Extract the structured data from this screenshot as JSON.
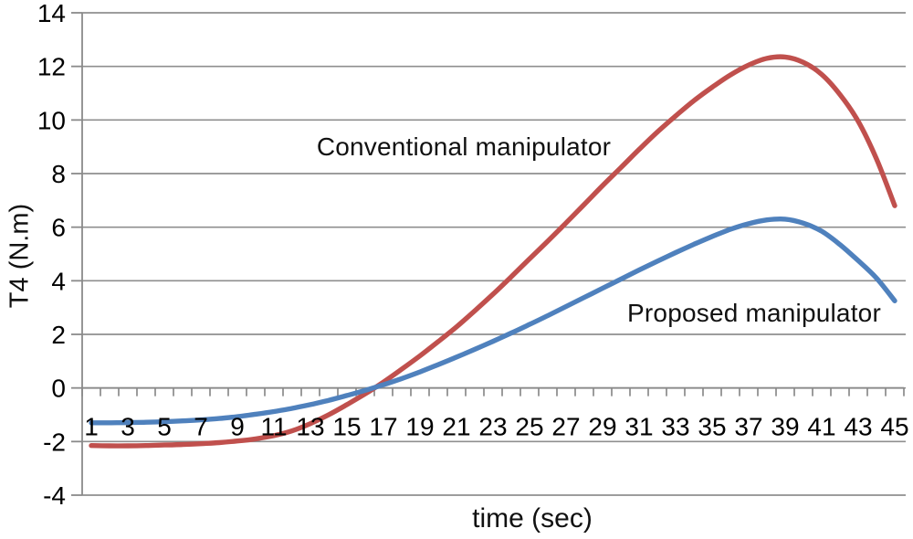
{
  "chart_data": {
    "type": "line",
    "title": "",
    "xlabel": "time (sec)",
    "ylabel": "T4 (N.m)",
    "x": [
      1,
      2,
      3,
      4,
      5,
      6,
      7,
      8,
      9,
      10,
      11,
      12,
      13,
      14,
      15,
      16,
      17,
      18,
      19,
      20,
      21,
      22,
      23,
      24,
      25,
      26,
      27,
      28,
      29,
      30,
      31,
      32,
      33,
      34,
      35,
      36,
      37,
      38,
      39,
      40,
      41,
      42,
      43,
      44,
      45
    ],
    "x_tick_labels": [
      "1",
      "3",
      "5",
      "7",
      "9",
      "11",
      "13",
      "15",
      "17",
      "19",
      "21",
      "23",
      "25",
      "27",
      "29",
      "31",
      "33",
      "35",
      "37",
      "39",
      "41",
      "43",
      "45"
    ],
    "ylim": [
      -4,
      14
    ],
    "yticks": [
      -4,
      -2,
      0,
      2,
      4,
      6,
      8,
      10,
      12,
      14
    ],
    "grid": true,
    "legend_position": "none",
    "grid_color": "#8f8f8f",
    "axis_color": "#8a8a8a",
    "text_color": "#000000",
    "series": [
      {
        "name": "Conventional manipulator",
        "color": "#C0504D",
        "values": [
          -2.15,
          -2.16,
          -2.16,
          -2.15,
          -2.13,
          -2.11,
          -2.08,
          -2.04,
          -1.98,
          -1.9,
          -1.78,
          -1.6,
          -1.33,
          -1.0,
          -0.62,
          -0.22,
          0.22,
          0.7,
          1.2,
          1.73,
          2.28,
          2.88,
          3.5,
          4.15,
          4.82,
          5.48,
          6.16,
          6.85,
          7.55,
          8.22,
          8.9,
          9.55,
          10.15,
          10.72,
          11.22,
          11.68,
          12.05,
          12.3,
          12.35,
          12.15,
          11.7,
          10.95,
          9.95,
          8.55,
          6.8
        ]
      },
      {
        "name": "Proposed manipulator",
        "color": "#4F81BD",
        "values": [
          -1.3,
          -1.3,
          -1.29,
          -1.28,
          -1.26,
          -1.23,
          -1.19,
          -1.14,
          -1.07,
          -0.98,
          -0.88,
          -0.76,
          -0.62,
          -0.46,
          -0.28,
          -0.09,
          0.12,
          0.35,
          0.6,
          0.87,
          1.15,
          1.44,
          1.74,
          2.05,
          2.37,
          2.7,
          3.04,
          3.38,
          3.72,
          4.06,
          4.4,
          4.73,
          5.05,
          5.36,
          5.65,
          5.92,
          6.13,
          6.27,
          6.3,
          6.15,
          5.85,
          5.35,
          4.75,
          4.1,
          3.25
        ]
      }
    ],
    "annotations": [
      {
        "text": "Conventional manipulator",
        "series": "Conventional manipulator",
        "x": 21.4,
        "y": 9.0
      },
      {
        "text": "Proposed manipulator",
        "series": "Proposed manipulator",
        "x": 37.3,
        "y": 2.8
      }
    ]
  }
}
